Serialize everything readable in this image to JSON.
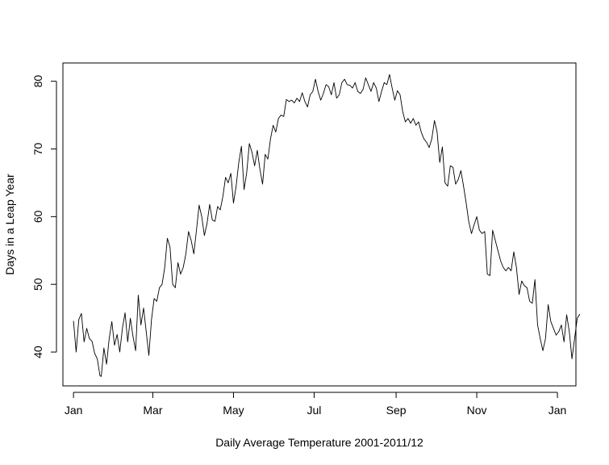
{
  "chart_data": {
    "type": "line",
    "title": "",
    "xlabel": "Daily Average Temperature 2001-2011/12",
    "ylabel": "Days in a Leap Year",
    "x_ticks": [
      {
        "label": "Jan",
        "day": 1
      },
      {
        "label": "Mar",
        "day": 61
      },
      {
        "label": "May",
        "day": 122
      },
      {
        "label": "Jul",
        "day": 183
      },
      {
        "label": "Sep",
        "day": 245
      },
      {
        "label": "Nov",
        "day": 306
      },
      {
        "label": "Jan",
        "day": 367
      }
    ],
    "y_ticks": [
      40,
      50,
      60,
      70,
      80
    ],
    "xlim": [
      -7,
      381
    ],
    "ylim": [
      35,
      82.7
    ],
    "grid": false,
    "series": [
      {
        "color": "#000000",
        "points": [
          [
            1,
            44.6
          ],
          [
            3,
            40.0
          ],
          [
            5,
            44.8
          ],
          [
            7,
            45.7
          ],
          [
            9,
            41.5
          ],
          [
            11,
            43.5
          ],
          [
            13,
            42.0
          ],
          [
            15,
            41.6
          ],
          [
            17,
            39.8
          ],
          [
            19,
            39.0
          ],
          [
            21,
            36.5
          ],
          [
            22,
            36.4
          ],
          [
            24,
            40.6
          ],
          [
            26,
            38.2
          ],
          [
            28,
            42.0
          ],
          [
            30,
            44.5
          ],
          [
            32,
            41.0
          ],
          [
            34,
            42.6
          ],
          [
            36,
            40.0
          ],
          [
            38,
            43.5
          ],
          [
            40,
            45.8
          ],
          [
            42,
            41.5
          ],
          [
            44,
            45.0
          ],
          [
            46,
            42.3
          ],
          [
            48,
            40.2
          ],
          [
            50,
            48.4
          ],
          [
            52,
            44.0
          ],
          [
            54,
            46.5
          ],
          [
            56,
            43.0
          ],
          [
            58,
            39.5
          ],
          [
            60,
            44.8
          ],
          [
            62,
            47.9
          ],
          [
            64,
            47.5
          ],
          [
            66,
            49.5
          ],
          [
            68,
            50.0
          ],
          [
            70,
            52.5
          ],
          [
            72,
            56.8
          ],
          [
            74,
            55.5
          ],
          [
            76,
            50.0
          ],
          [
            78,
            49.5
          ],
          [
            80,
            53.2
          ],
          [
            82,
            51.5
          ],
          [
            84,
            52.5
          ],
          [
            86,
            54.5
          ],
          [
            88,
            57.8
          ],
          [
            90,
            56.5
          ],
          [
            92,
            54.5
          ],
          [
            94,
            58.0
          ],
          [
            96,
            61.7
          ],
          [
            98,
            60.0
          ],
          [
            100,
            57.2
          ],
          [
            102,
            59.0
          ],
          [
            104,
            61.8
          ],
          [
            106,
            59.5
          ],
          [
            108,
            59.3
          ],
          [
            110,
            61.5
          ],
          [
            112,
            61.0
          ],
          [
            114,
            63.0
          ],
          [
            116,
            65.8
          ],
          [
            118,
            65.0
          ],
          [
            120,
            66.4
          ],
          [
            122,
            62.0
          ],
          [
            124,
            64.5
          ],
          [
            126,
            68.0
          ],
          [
            128,
            70.4
          ],
          [
            130,
            64.0
          ],
          [
            132,
            66.5
          ],
          [
            134,
            70.8
          ],
          [
            136,
            69.5
          ],
          [
            138,
            67.5
          ],
          [
            140,
            69.8
          ],
          [
            142,
            67.0
          ],
          [
            144,
            64.8
          ],
          [
            146,
            69.2
          ],
          [
            148,
            68.5
          ],
          [
            150,
            71.5
          ],
          [
            152,
            73.5
          ],
          [
            154,
            72.5
          ],
          [
            156,
            74.5
          ],
          [
            158,
            75.0
          ],
          [
            160,
            74.8
          ],
          [
            162,
            77.3
          ],
          [
            164,
            77.0
          ],
          [
            166,
            77.2
          ],
          [
            168,
            76.8
          ],
          [
            170,
            77.5
          ],
          [
            172,
            77.0
          ],
          [
            174,
            78.3
          ],
          [
            176,
            77.0
          ],
          [
            178,
            76.2
          ],
          [
            180,
            78.0
          ],
          [
            182,
            78.5
          ],
          [
            184,
            80.3
          ],
          [
            186,
            78.5
          ],
          [
            188,
            77.2
          ],
          [
            190,
            78.2
          ],
          [
            192,
            79.5
          ],
          [
            194,
            79.2
          ],
          [
            196,
            78.0
          ],
          [
            198,
            79.8
          ],
          [
            200,
            77.5
          ],
          [
            202,
            78.0
          ],
          [
            204,
            79.8
          ],
          [
            206,
            80.3
          ],
          [
            208,
            79.5
          ],
          [
            210,
            79.4
          ],
          [
            212,
            79.0
          ],
          [
            214,
            79.8
          ],
          [
            216,
            78.5
          ],
          [
            218,
            78.2
          ],
          [
            220,
            78.8
          ],
          [
            222,
            80.5
          ],
          [
            224,
            79.5
          ],
          [
            226,
            78.5
          ],
          [
            228,
            79.8
          ],
          [
            230,
            79.0
          ],
          [
            232,
            77.0
          ],
          [
            234,
            78.5
          ],
          [
            236,
            79.8
          ],
          [
            238,
            79.5
          ],
          [
            240,
            81.0
          ],
          [
            242,
            79.0
          ],
          [
            244,
            77.2
          ],
          [
            246,
            78.6
          ],
          [
            248,
            78.0
          ],
          [
            250,
            75.5
          ],
          [
            252,
            74.0
          ],
          [
            254,
            74.5
          ],
          [
            256,
            73.8
          ],
          [
            258,
            74.5
          ],
          [
            260,
            73.5
          ],
          [
            262,
            74.0
          ],
          [
            264,
            72.5
          ],
          [
            266,
            71.5
          ],
          [
            268,
            71.0
          ],
          [
            270,
            70.2
          ],
          [
            272,
            71.5
          ],
          [
            274,
            74.2
          ],
          [
            276,
            72.5
          ],
          [
            278,
            68.0
          ],
          [
            280,
            70.3
          ],
          [
            282,
            65.0
          ],
          [
            284,
            64.5
          ],
          [
            286,
            67.5
          ],
          [
            288,
            67.3
          ],
          [
            290,
            64.8
          ],
          [
            292,
            65.5
          ],
          [
            294,
            66.8
          ],
          [
            296,
            64.5
          ],
          [
            298,
            62.0
          ],
          [
            300,
            59.2
          ],
          [
            302,
            57.5
          ],
          [
            304,
            58.8
          ],
          [
            306,
            60.0
          ],
          [
            308,
            58.0
          ],
          [
            310,
            57.5
          ],
          [
            312,
            57.8
          ],
          [
            314,
            51.5
          ],
          [
            316,
            51.3
          ],
          [
            318,
            58.0
          ],
          [
            320,
            56.5
          ],
          [
            322,
            55.0
          ],
          [
            324,
            53.5
          ],
          [
            326,
            52.5
          ],
          [
            328,
            52.0
          ],
          [
            330,
            52.5
          ],
          [
            332,
            52.0
          ],
          [
            334,
            54.8
          ],
          [
            336,
            52.5
          ],
          [
            338,
            48.5
          ],
          [
            340,
            50.5
          ],
          [
            342,
            49.8
          ],
          [
            344,
            49.5
          ],
          [
            346,
            47.5
          ],
          [
            348,
            47.2
          ],
          [
            350,
            50.7
          ],
          [
            352,
            44.0
          ],
          [
            354,
            42.0
          ],
          [
            356,
            40.2
          ],
          [
            358,
            42.0
          ],
          [
            360,
            47.0
          ],
          [
            362,
            44.5
          ],
          [
            364,
            43.5
          ],
          [
            366,
            42.5
          ],
          [
            368,
            43.0
          ],
          [
            370,
            44.0
          ],
          [
            372,
            41.5
          ],
          [
            374,
            45.5
          ],
          [
            376,
            43.0
          ],
          [
            378,
            39.0
          ],
          [
            380,
            42.0
          ],
          [
            382,
            45.0
          ],
          [
            384,
            45.6
          ]
        ]
      }
    ]
  }
}
